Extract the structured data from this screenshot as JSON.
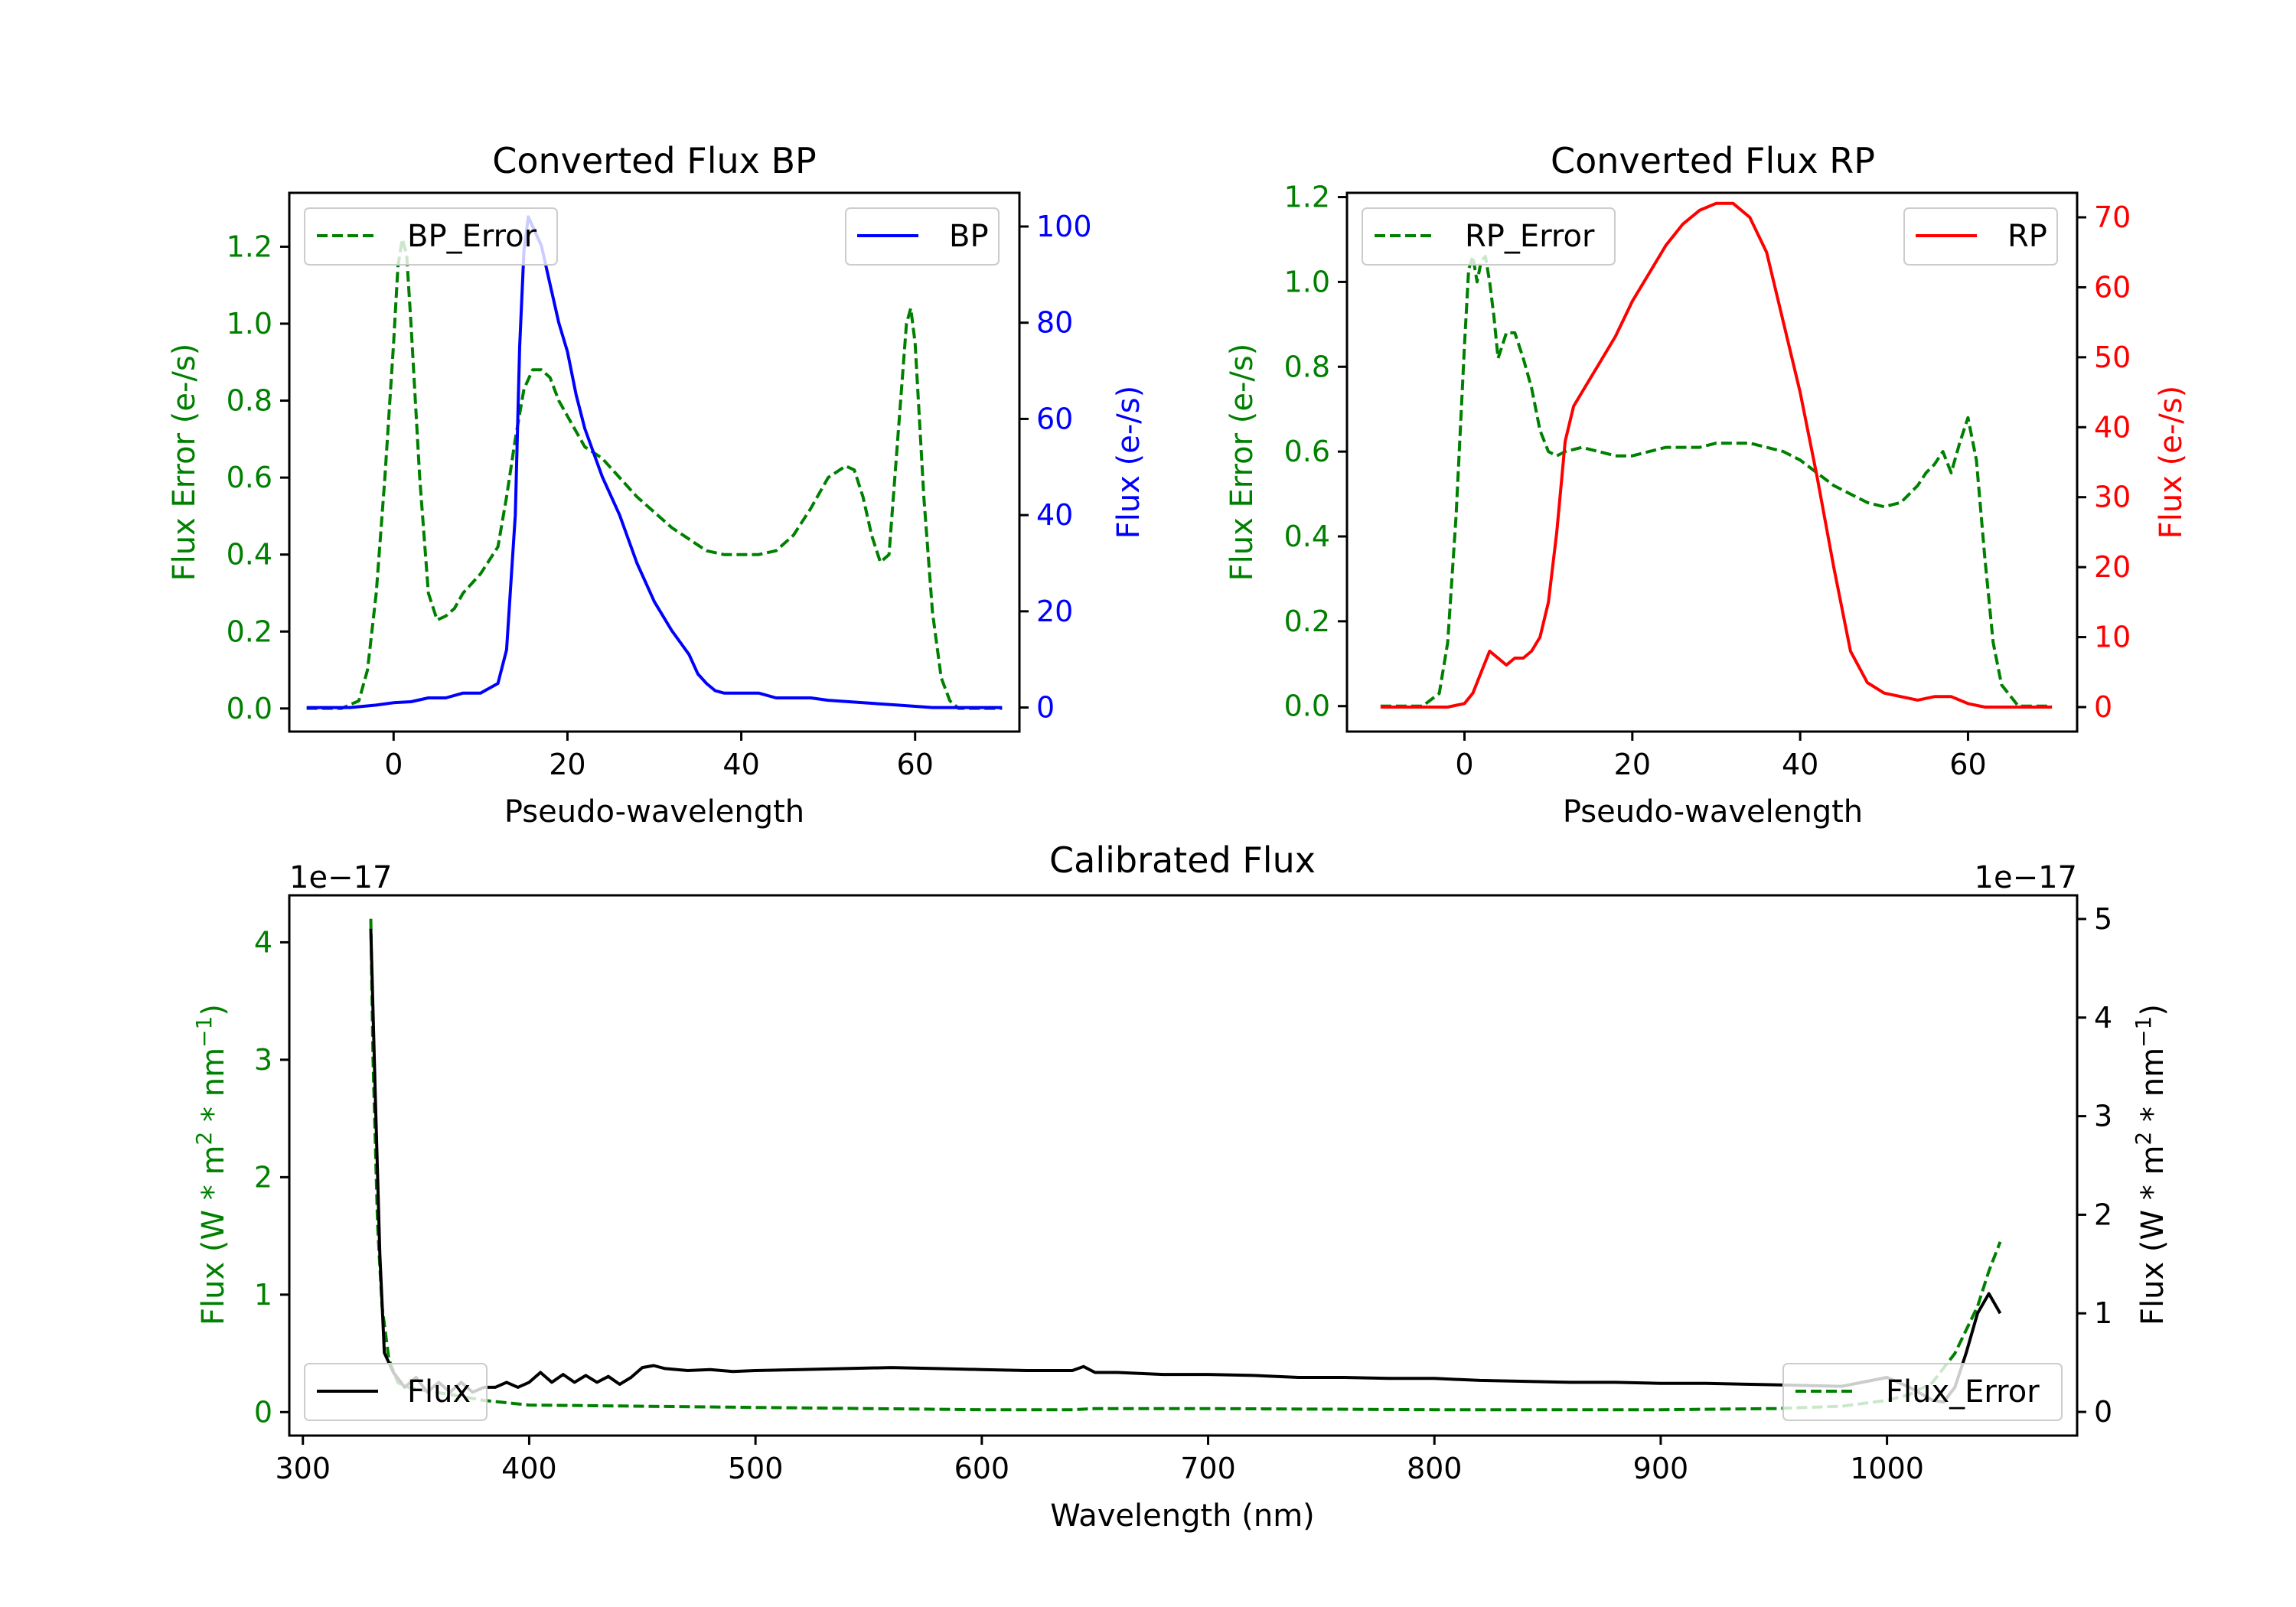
{
  "chart_data": [
    {
      "type": "line",
      "id": "bp",
      "title": "Converted Flux BP",
      "xlabel": "Pseudo-wavelength",
      "ylabel_left": "Flux Error (e-/s)",
      "ylabel_right": "Flux (e-/s)",
      "xlim": [
        -12,
        72
      ],
      "ylim_left": [
        -0.06,
        1.34
      ],
      "ylim_right": [
        -5,
        107
      ],
      "xticks": [
        0,
        20,
        40,
        60
      ],
      "xtick_labels": [
        "0",
        "20",
        "40",
        "60"
      ],
      "yticks_left": [
        0.0,
        0.2,
        0.4,
        0.6,
        0.8,
        1.0,
        1.2
      ],
      "ytick_labels_left": [
        "0.0",
        "0.2",
        "0.4",
        "0.6",
        "0.8",
        "1.0",
        "1.2"
      ],
      "yticks_right": [
        0,
        20,
        40,
        60,
        80,
        100
      ],
      "ytick_labels_right": [
        "0",
        "20",
        "40",
        "60",
        "80",
        "100"
      ],
      "left_color": "#008000",
      "right_color": "#0000ff",
      "series": [
        {
          "name": "BP_Error",
          "axis": "left",
          "color": "#008000",
          "style": "dashed",
          "x": [
            -10,
            -6,
            -4,
            -3,
            -2,
            -1,
            0,
            0.5,
            1,
            1.5,
            2,
            3,
            4,
            5,
            6,
            7,
            8,
            10,
            12,
            13,
            14,
            15,
            16,
            17,
            18,
            19,
            20,
            22,
            24,
            26,
            28,
            30,
            32,
            34,
            36,
            38,
            40,
            42,
            44,
            46,
            48,
            50,
            52,
            53,
            54,
            55,
            56,
            57,
            58,
            59,
            59.5,
            60,
            61,
            62,
            63,
            64,
            65,
            66,
            67,
            70
          ],
          "y": [
            0.0,
            0.0,
            0.02,
            0.1,
            0.3,
            0.6,
            0.95,
            1.15,
            1.22,
            1.18,
            1.0,
            0.6,
            0.3,
            0.23,
            0.24,
            0.26,
            0.3,
            0.35,
            0.42,
            0.55,
            0.7,
            0.83,
            0.88,
            0.88,
            0.86,
            0.8,
            0.76,
            0.68,
            0.65,
            0.6,
            0.55,
            0.51,
            0.47,
            0.44,
            0.41,
            0.4,
            0.4,
            0.4,
            0.41,
            0.45,
            0.52,
            0.6,
            0.63,
            0.62,
            0.55,
            0.45,
            0.38,
            0.4,
            0.7,
            1.0,
            1.04,
            0.95,
            0.55,
            0.25,
            0.08,
            0.02,
            0.0,
            0.0,
            0.0,
            0.0
          ]
        },
        {
          "name": "BP",
          "axis": "right",
          "color": "#0000ff",
          "style": "solid",
          "x": [
            -10,
            -5,
            -2,
            0,
            2,
            4,
            6,
            8,
            10,
            12,
            13,
            14,
            14.5,
            15,
            15.5,
            16,
            17,
            18,
            19,
            20,
            21,
            22,
            24,
            26,
            28,
            30,
            32,
            34,
            35,
            36,
            37,
            38,
            40,
            42,
            44,
            46,
            48,
            50,
            54,
            58,
            62,
            66,
            70
          ],
          "y": [
            0,
            0,
            0.5,
            1,
            1.2,
            2,
            2,
            3,
            3,
            5,
            12,
            40,
            75,
            95,
            102,
            100,
            96,
            88,
            80,
            74,
            65,
            58,
            48,
            40,
            30,
            22,
            16,
            11,
            7,
            5,
            3.5,
            3,
            3,
            3,
            2,
            2,
            2,
            1.5,
            1,
            0.5,
            0,
            0,
            0
          ]
        }
      ],
      "legend": [
        {
          "label": "BP_Error",
          "position": "upper-left"
        },
        {
          "label": "BP",
          "position": "upper-right"
        }
      ]
    },
    {
      "type": "line",
      "id": "rp",
      "title": "Converted Flux RP",
      "xlabel": "Pseudo-wavelength",
      "ylabel_left": "Flux Error (e-/s)",
      "ylabel_right": "Flux (e-/s)",
      "xlim": [
        -14,
        73
      ],
      "ylim_left": [
        -0.06,
        1.21
      ],
      "ylim_right": [
        -3.5,
        73.5
      ],
      "xticks": [
        0,
        20,
        40,
        60
      ],
      "xtick_labels": [
        "0",
        "20",
        "40",
        "60"
      ],
      "yticks_left": [
        0.0,
        0.2,
        0.4,
        0.6,
        0.8,
        1.0,
        1.2
      ],
      "ytick_labels_left": [
        "0.0",
        "0.2",
        "0.4",
        "0.6",
        "0.8",
        "1.0",
        "1.2"
      ],
      "yticks_right": [
        0,
        10,
        20,
        30,
        40,
        50,
        60,
        70
      ],
      "ytick_labels_right": [
        "0",
        "10",
        "20",
        "30",
        "40",
        "50",
        "60",
        "70"
      ],
      "left_color": "#008000",
      "right_color": "#ff0000",
      "series": [
        {
          "name": "RP_Error",
          "axis": "left",
          "color": "#008000",
          "style": "dashed",
          "x": [
            -10,
            -5,
            -3,
            -2,
            -1,
            0,
            0.5,
            1,
            1.5,
            2,
            2.5,
            3,
            3.5,
            4,
            4.5,
            5,
            6,
            7,
            8,
            9,
            10,
            11,
            12,
            14,
            16,
            18,
            20,
            22,
            24,
            26,
            28,
            30,
            32,
            34,
            36,
            38,
            40,
            42,
            44,
            46,
            48,
            50,
            52,
            54,
            55,
            56,
            57,
            58,
            59,
            60,
            61,
            62,
            63,
            64,
            66,
            70
          ],
          "y": [
            0.0,
            0.0,
            0.03,
            0.15,
            0.45,
            0.85,
            1.03,
            1.06,
            1.0,
            1.05,
            1.06,
            1.0,
            0.92,
            0.82,
            0.85,
            0.88,
            0.88,
            0.82,
            0.75,
            0.65,
            0.6,
            0.59,
            0.6,
            0.61,
            0.6,
            0.59,
            0.59,
            0.6,
            0.61,
            0.61,
            0.61,
            0.62,
            0.62,
            0.62,
            0.61,
            0.6,
            0.58,
            0.55,
            0.52,
            0.5,
            0.48,
            0.47,
            0.48,
            0.52,
            0.55,
            0.57,
            0.6,
            0.55,
            0.62,
            0.68,
            0.58,
            0.35,
            0.15,
            0.05,
            0.0,
            0.0
          ]
        },
        {
          "name": "RP",
          "axis": "right",
          "color": "#ff0000",
          "style": "solid",
          "x": [
            -10,
            -5,
            -2,
            0,
            1,
            2,
            3,
            4,
            5,
            6,
            7,
            8,
            9,
            10,
            11,
            12,
            13,
            14,
            16,
            18,
            20,
            22,
            24,
            26,
            28,
            30,
            32,
            34,
            36,
            38,
            40,
            42,
            44,
            46,
            48,
            50,
            52,
            54,
            56,
            58,
            60,
            62,
            64,
            66,
            70
          ],
          "y": [
            0,
            0,
            0,
            0.5,
            2,
            5,
            8,
            7,
            6,
            7,
            7,
            8,
            10,
            15,
            25,
            38,
            43,
            45,
            49,
            53,
            58,
            62,
            66,
            69,
            71,
            72,
            72,
            70,
            65,
            55,
            45,
            33,
            20,
            8,
            3.5,
            2,
            1.5,
            1,
            1.5,
            1.5,
            0.5,
            0,
            0,
            0,
            0
          ]
        }
      ],
      "legend": [
        {
          "label": "RP_Error",
          "position": "upper-left"
        },
        {
          "label": "RP",
          "position": "upper-right"
        }
      ]
    },
    {
      "type": "line",
      "id": "cal",
      "title": "Calibrated Flux",
      "xlabel": "Wavelength (nm)",
      "ylabel_left": "Flux (W * m^2 * nm^-1)",
      "ylabel_right": "Flux (W * m^2 * nm^-1)",
      "ylabel_main": "Flux (W * m",
      "ylabel_mid": " * nm",
      "ylabel_end": ")",
      "ylabel_sup1": "2",
      "ylabel_sup2": "−1",
      "offset_left": "1e−17",
      "offset_right": "1e−17",
      "xlim": [
        294,
        1084
      ],
      "ylim_left": [
        -0.2,
        4.4
      ],
      "ylim_right": [
        -0.24,
        5.24
      ],
      "xticks": [
        300,
        400,
        500,
        600,
        700,
        800,
        900,
        1000
      ],
      "xtick_labels": [
        "300",
        "400",
        "500",
        "600",
        "700",
        "800",
        "900",
        "1000"
      ],
      "yticks_left": [
        0,
        1,
        2,
        3,
        4
      ],
      "ytick_labels_left": [
        "0",
        "1",
        "2",
        "3",
        "4"
      ],
      "yticks_right": [
        0,
        1,
        2,
        3,
        4,
        5
      ],
      "ytick_labels_right": [
        "0",
        "1",
        "2",
        "3",
        "4",
        "5"
      ],
      "left_color": "#008000",
      "right_color": "#000000",
      "series": [
        {
          "name": "Flux_Error",
          "axis": "left",
          "color": "#008000",
          "style": "dashed",
          "x": [
            330,
            331,
            333,
            335,
            338,
            342,
            348,
            355,
            365,
            380,
            400,
            450,
            500,
            550,
            600,
            640,
            650,
            700,
            800,
            900,
            950,
            980,
            1000,
            1010,
            1020,
            1030,
            1040,
            1045,
            1050
          ],
          "y": [
            4.2,
            3.0,
            1.6,
            0.9,
            0.45,
            0.25,
            0.2,
            0.18,
            0.15,
            0.1,
            0.06,
            0.05,
            0.04,
            0.03,
            0.02,
            0.02,
            0.03,
            0.03,
            0.02,
            0.02,
            0.03,
            0.05,
            0.1,
            0.15,
            0.25,
            0.5,
            0.9,
            1.2,
            1.45
          ]
        },
        {
          "name": "Flux",
          "axis": "right",
          "color": "#000000",
          "style": "solid",
          "x": [
            330,
            332,
            334,
            336,
            340,
            345,
            350,
            355,
            360,
            365,
            370,
            375,
            380,
            385,
            390,
            395,
            400,
            405,
            410,
            415,
            420,
            425,
            430,
            435,
            440,
            445,
            450,
            455,
            460,
            470,
            480,
            490,
            500,
            520,
            540,
            560,
            580,
            600,
            620,
            640,
            645,
            650,
            660,
            680,
            700,
            720,
            740,
            760,
            780,
            800,
            820,
            840,
            860,
            880,
            900,
            920,
            940,
            960,
            980,
            1000,
            1010,
            1020,
            1025,
            1030,
            1035,
            1040,
            1045,
            1050
          ],
          "y": [
            4.9,
            3.2,
            1.6,
            0.6,
            0.4,
            0.25,
            0.35,
            0.2,
            0.3,
            0.2,
            0.3,
            0.2,
            0.25,
            0.25,
            0.3,
            0.25,
            0.3,
            0.4,
            0.3,
            0.38,
            0.3,
            0.37,
            0.3,
            0.36,
            0.28,
            0.35,
            0.45,
            0.47,
            0.44,
            0.42,
            0.43,
            0.41,
            0.42,
            0.43,
            0.44,
            0.45,
            0.44,
            0.43,
            0.42,
            0.42,
            0.46,
            0.4,
            0.4,
            0.38,
            0.38,
            0.37,
            0.35,
            0.35,
            0.34,
            0.34,
            0.32,
            0.31,
            0.3,
            0.3,
            0.29,
            0.29,
            0.28,
            0.27,
            0.26,
            0.35,
            0.25,
            0.12,
            0.1,
            0.25,
            0.6,
            1.0,
            1.2,
            1.0
          ]
        }
      ],
      "legend": [
        {
          "label": "Flux",
          "position": "lower-left"
        },
        {
          "label": "Flux_Error",
          "position": "lower-right"
        }
      ]
    }
  ]
}
